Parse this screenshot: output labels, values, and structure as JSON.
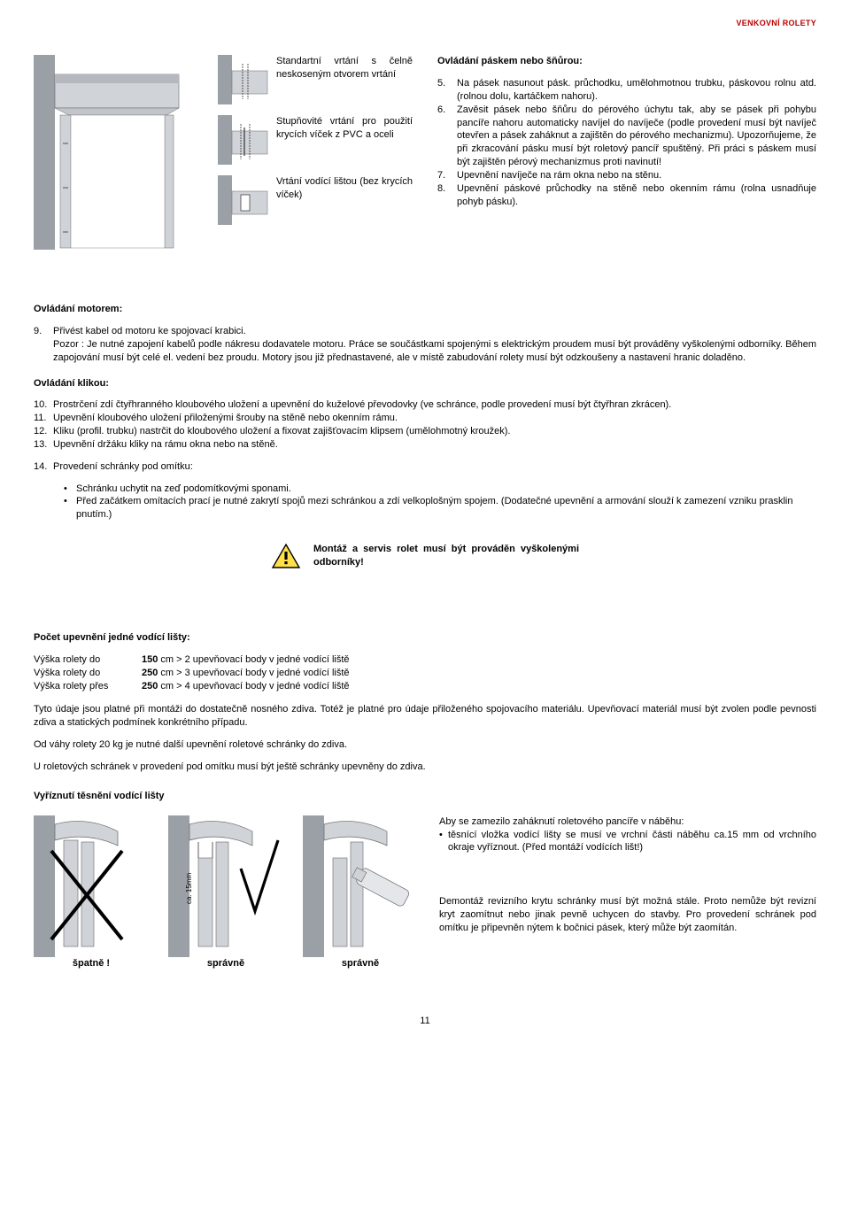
{
  "header": "VENKOVNÍ ROLETY",
  "midCaptions": {
    "a": "Standartní vrtání s čelně neskoseným otvorem vrtání",
    "b": "Stupňovité vrtání pro použití krycích víček z PVC a oceli",
    "c": "Vrtání vodící lištou (bez krycích víček)"
  },
  "rightTitle": "Ovládání páskem nebo šňůrou:",
  "rightItems": [
    {
      "n": "5.",
      "t": "Na pásek nasunout pásk. průchodku, umělohmotnou trubku, páskovou rolnu atd.(rolnou dolu, kartáčkem nahoru)."
    },
    {
      "n": "6.",
      "t": "Zavěsit pásek nebo šňůru do pérového úchytu tak, aby se pásek při pohybu pancíře nahoru automaticky naví­jel do navíječe (podle provedení musí být navíječ otevřen a pásek zaháknut a zajištěn do pérového mechanizmu). Upozorňujeme, že při zkracování pásku musí být roletový pancíř spuštěný. Při práci s páskem musí být zajištěn pérový mechanizmus proti navinutí!"
    },
    {
      "n": "7.",
      "t": "Upevnění navíječe na rám okna nebo na stěnu."
    },
    {
      "n": "8.",
      "t": "Upevnění páskové průchodky na stěně nebo okenním rámu (rolna usnadňuje pohyb pásku)."
    }
  ],
  "motorTitle": "Ovládání motorem:",
  "motorItems": [
    {
      "n": "9.",
      "t": "Přivést kabel od motoru ke spojovací krabici."
    }
  ],
  "motorNote": "Pozor : Je nutné zapojení kabelů podle nákresu dodavatele motoru. Práce se součástkami spojenými s elektrickým proudem musí být prováděny vyškolenými odborníky. Během zapojování musí být celé el. vedení bez proudu. Motory jsou již přednastavené, ale v místě zabudování rolety musí být odzkoušeny a nastavení hranic doladěno.",
  "klikouTitle": "Ovládání klikou:",
  "klikouItems": [
    {
      "n": "10.",
      "t": "Prostrčení zdí čtyřhranného kloubového uložení a upevnění do kuželové převodovky (ve schránce, podle provedení musí být čtyřhran zkrácen)."
    },
    {
      "n": "11.",
      "t": "Upevnění kloubového uložení přiloženými šrouby na stěně nebo okenním rámu."
    },
    {
      "n": "12.",
      "t": "Kliku (profil. trubku) nastrčit do kloubového uložení a fixovat zajišťovacím klipsem (umělohmotný kroužek)."
    },
    {
      "n": "13.",
      "t": "Upevnění držáku kliky na rámu okna nebo na stěně."
    },
    {
      "n": "14.",
      "t": "Provedení schránky pod omítku:"
    }
  ],
  "subBullets": [
    "Schránku uchytit na zeď podomítkovými sponami.",
    "Před začátkem omítacích prací je nutné zakrytí spojů mezi schránkou a zdí velkoplošným spojem. (Dodatečné upevnění a armování slouží k zamezení vzniku prasklin pnutím.)"
  ],
  "warnText": "Montáž a servis rolet musí být prováděn vyškolenými odborníky!",
  "fixTitle": "Počet upevnění jedné vodící lišty:",
  "fixRows": [
    {
      "a": "Výška rolety do",
      "b": "150 cm > 2 upevňovací body v jedné vodící liště"
    },
    {
      "a": "Výška rolety do",
      "b": "250 cm > 3 upevňovací body v jedné vodící liště"
    },
    {
      "a": "Výška rolety přes",
      "b": "250 cm > 4 upevňovací body v jedné vodící liště"
    }
  ],
  "fixNotes": [
    "Tyto údaje jsou platné při montáži do dostatečně nosného zdiva. Totéž je platné pro údaje přiloženého spojovacího materiálu. Upevňovací materiál musí být zvolen podle pevnosti zdiva a statických podmínek konkrétního případu.",
    "Od váhy rolety 20 kg je nutné další upevnění roletové schránky do zdiva.",
    "U roletových schránek v provedení pod omítku musí být ještě schránky upevněny do zdiva."
  ],
  "cutTitle": "Vyříznutí těsnění vodící lišty",
  "bdLabels": {
    "wrong": "špatně !",
    "ok1": "správně",
    "ok2": "správně"
  },
  "caLabel": "ca. 15mm",
  "bottomRight": {
    "p1": "Aby se zamezilo zaháknutí roletového pancíře v náběhu:",
    "li": "těsnící vložka vodící lišty se musí ve vrchní části náběhu ca.15 mm od vrchního okraje vyříznout. (Před montáží vodících lišt!)",
    "p2": "Demontáž revizního krytu schránky musí být možná stále. Proto nemůže být revizní kryt zaomítnut nebo ji­nak pevně uchycen do stavby. Pro provedení schránek pod omítku je připevněn nýtem k bočnici pásek, který může být zaomítán."
  },
  "pageNum": "11",
  "colors": {
    "accent": "#b00",
    "gray": "#9aa0a6",
    "lightgray": "#d0d3d8",
    "warnFill": "#ffe04a",
    "warnBorder": "#000"
  }
}
